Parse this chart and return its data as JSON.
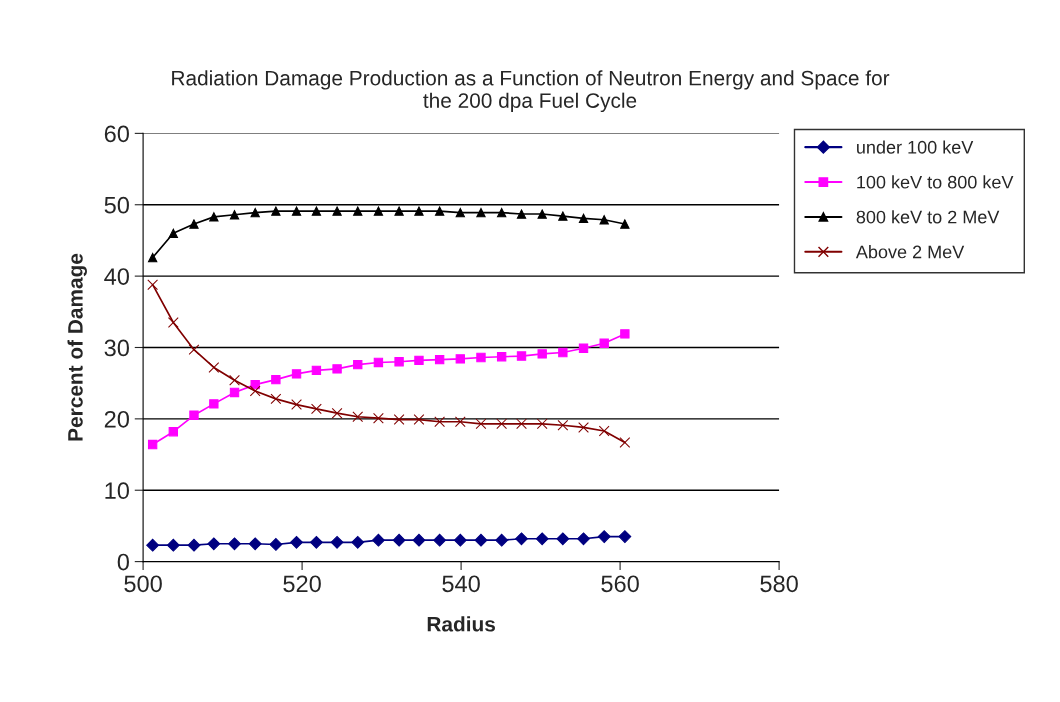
{
  "chart_data": {
    "type": "line",
    "title": "Radiation Damage Production as a Function of Neutron Energy and Space for\nthe 200 dpa Fuel Cycle",
    "xlabel": "Radius",
    "ylabel": "Percent of Damage",
    "x": [
      501.2,
      503.8,
      506.4,
      508.9,
      511.5,
      514.1,
      516.7,
      519.3,
      521.8,
      524.4,
      527.0,
      529.6,
      532.2,
      534.7,
      537.3,
      539.9,
      542.5,
      545.1,
      547.6,
      550.2,
      552.8,
      555.4,
      558.0,
      560.6
    ],
    "series": [
      {
        "name": "under 100 keV",
        "color": "#000080",
        "marker": "diamond",
        "values": [
          2.3,
          2.3,
          2.3,
          2.5,
          2.5,
          2.5,
          2.4,
          2.7,
          2.7,
          2.7,
          2.7,
          3.0,
          3.0,
          3.0,
          3.0,
          3.0,
          3.0,
          3.0,
          3.2,
          3.2,
          3.2,
          3.2,
          3.5,
          3.5
        ]
      },
      {
        "name": "100 keV to 800 keV",
        "color": "#ff00ff",
        "marker": "square",
        "values": [
          16.4,
          18.2,
          20.5,
          22.1,
          23.7,
          24.8,
          25.5,
          26.3,
          26.8,
          27.0,
          27.6,
          27.9,
          28.0,
          28.2,
          28.3,
          28.4,
          28.6,
          28.7,
          28.8,
          29.1,
          29.3,
          29.9,
          30.6,
          31.9
        ]
      },
      {
        "name": "800 keV to 2 MeV",
        "color": "#000000",
        "marker": "triangle",
        "values": [
          42.6,
          46.0,
          47.3,
          48.3,
          48.6,
          48.9,
          49.1,
          49.1,
          49.1,
          49.1,
          49.1,
          49.1,
          49.1,
          49.1,
          49.1,
          48.9,
          48.9,
          48.9,
          48.7,
          48.7,
          48.4,
          48.1,
          47.9,
          47.3
        ]
      },
      {
        "name": "Above 2 MeV",
        "color": "#800000",
        "marker": "cross",
        "values": [
          38.8,
          33.5,
          29.7,
          27.2,
          25.4,
          23.9,
          22.8,
          22.0,
          21.4,
          20.8,
          20.3,
          20.1,
          19.9,
          19.9,
          19.6,
          19.6,
          19.3,
          19.3,
          19.3,
          19.3,
          19.1,
          18.8,
          18.3,
          16.7
        ]
      }
    ],
    "xlim": [
      500,
      580
    ],
    "xticks": [
      500,
      520,
      540,
      560,
      580
    ],
    "ylim": [
      0,
      60
    ],
    "yticks": [
      0,
      10,
      20,
      30,
      40,
      50,
      60
    ],
    "grid": "y",
    "legend": "top right",
    "line_style": "solid"
  }
}
